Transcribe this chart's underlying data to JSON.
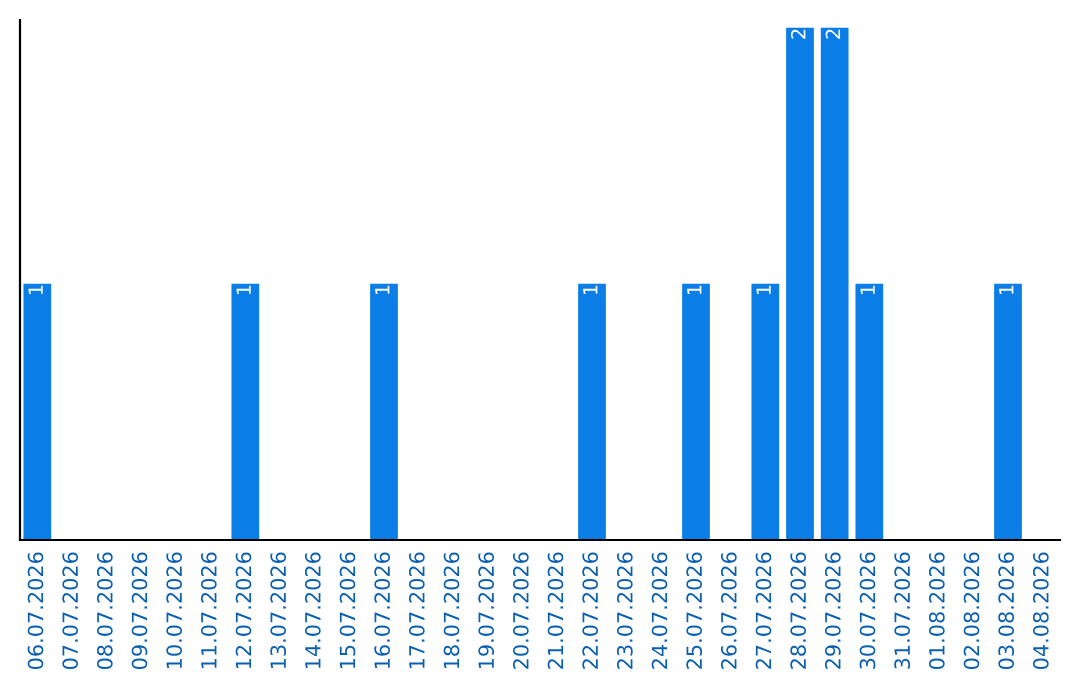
{
  "chart_data": {
    "type": "bar",
    "categories": [
      "06.07.2026",
      "07.07.2026",
      "08.07.2026",
      "09.07.2026",
      "10.07.2026",
      "11.07.2026",
      "12.07.2026",
      "13.07.2026",
      "14.07.2026",
      "15.07.2026",
      "16.07.2026",
      "17.07.2026",
      "18.07.2026",
      "19.07.2026",
      "20.07.2026",
      "21.07.2026",
      "22.07.2026",
      "23.07.2026",
      "24.07.2026",
      "25.07.2026",
      "26.07.2026",
      "27.07.2026",
      "28.07.2026",
      "29.07.2026",
      "30.07.2026",
      "31.07.2026",
      "01.08.2026",
      "02.08.2026",
      "03.08.2026",
      "04.08.2026"
    ],
    "values": [
      1,
      0,
      0,
      0,
      0,
      0,
      1,
      0,
      0,
      0,
      1,
      0,
      0,
      0,
      0,
      0,
      1,
      0,
      0,
      1,
      0,
      1,
      2,
      2,
      1,
      0,
      0,
      0,
      1,
      0
    ],
    "value_labels": [
      "1",
      null,
      null,
      null,
      null,
      null,
      "1",
      null,
      null,
      null,
      "1",
      null,
      null,
      null,
      null,
      null,
      "1",
      null,
      null,
      "1",
      null,
      "1",
      "2",
      "2",
      "1",
      null,
      null,
      null,
      "1",
      null
    ],
    "color": "#0a7ee6",
    "ylim": [
      0,
      2.03
    ],
    "tick_labels": "x",
    "grid": false,
    "legend": false
  }
}
